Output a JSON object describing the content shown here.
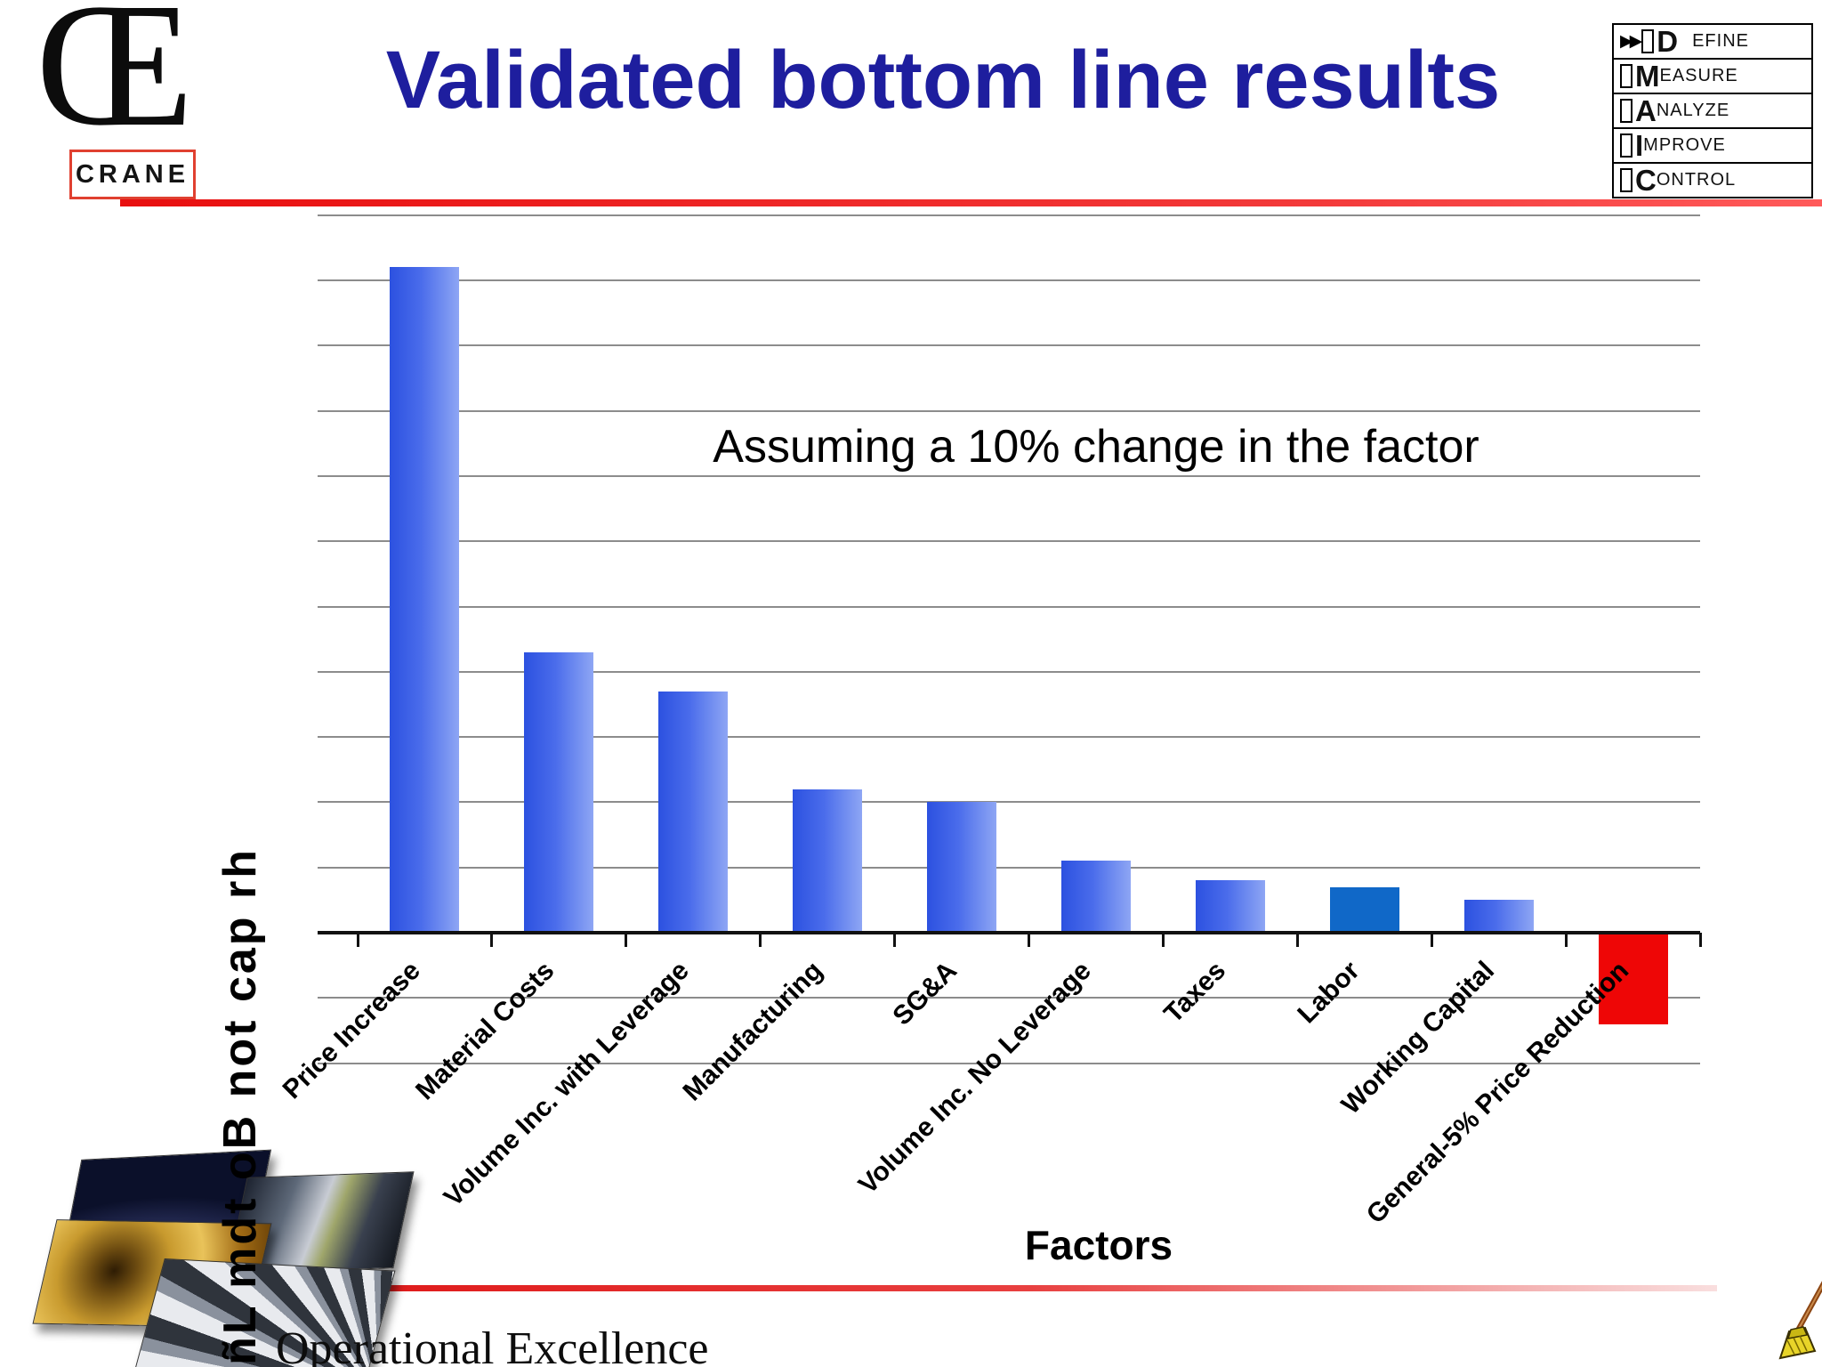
{
  "logo": {
    "monogram": "Œ",
    "name": "CRANE",
    "badge_border_color": "#e04030"
  },
  "header": {
    "title": "Validated bottom line results",
    "title_color": "#1e1e9e",
    "rule_color": "#e80f0f"
  },
  "dmaic": {
    "items": [
      {
        "arrows": "▶▶",
        "initial": "D",
        "rest": "EFINE"
      },
      {
        "arrows": "",
        "initial": "M",
        "rest": "EASURE"
      },
      {
        "arrows": "",
        "initial": "A",
        "rest": "NALYZE"
      },
      {
        "arrows": "",
        "initial": "I",
        "rest": "MPROVE"
      },
      {
        "arrows": "",
        "initial": "C",
        "rest": "ONTROL"
      }
    ]
  },
  "chart_data": {
    "type": "bar",
    "title": "",
    "annotation": "Assuming a 10% change in the factor",
    "xlabel": "Factors",
    "ylabel_garbled": "ñL mdt oB not cap rh",
    "categories": [
      "Price Increase",
      "Material Costs",
      "Volume Inc. with Leverage",
      "Manufacturing",
      "SG&A",
      "Volume Inc. No Leverage",
      "Taxes",
      "Labor",
      "Working Capital",
      "General-5% Price Reduction"
    ],
    "values": [
      10.2,
      4.3,
      3.7,
      2.2,
      2.0,
      1.1,
      0.8,
      0.7,
      0.5,
      -1.4
    ],
    "value_units": "relative gridline units (y axis has no tick labels)",
    "ylim": [
      -2,
      11
    ],
    "grid": "horizontal gridlines every 1 unit, extending below zero",
    "legend": "none",
    "bar_styles": [
      "gradient",
      "gradient",
      "gradient",
      "gradient",
      "gradient",
      "gradient",
      "gradient",
      "solid_blue",
      "gradient",
      "solid_red"
    ],
    "colors": {
      "gradient_left": "#2c51e0",
      "gradient_mid": "#4a6ceb",
      "gradient_right": "#8ea6f4",
      "solid_blue": "#1068c8",
      "solid_red": "#ee0606",
      "gridline": "#8c8c8c",
      "axis": "#111111"
    }
  },
  "footer": {
    "brand": "Operational Excellence",
    "rule_color": "#dd1111"
  }
}
